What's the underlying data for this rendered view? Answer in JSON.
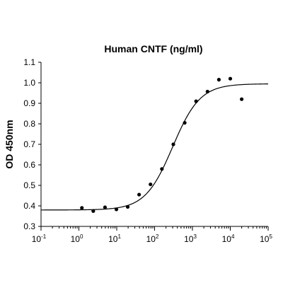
{
  "chart_data": {
    "type": "scatter",
    "title": "Human CNTF (ng/ml)",
    "xlabel": "",
    "ylabel": "OD 450nm",
    "x_scale": "log",
    "xlim": [
      0.1,
      100000
    ],
    "ylim": [
      0.3,
      1.1
    ],
    "y_ticks": [
      "0.3",
      "0.4",
      "0.5",
      "0.6",
      "0.7",
      "0.8",
      "0.9",
      "1.0",
      "1.1"
    ],
    "x_ticks": [
      {
        "base": "10",
        "exp": "-1",
        "value": 0.1
      },
      {
        "base": "10",
        "exp": "0",
        "value": 1
      },
      {
        "base": "10",
        "exp": "1",
        "value": 10
      },
      {
        "base": "10",
        "exp": "2",
        "value": 100
      },
      {
        "base": "10",
        "exp": "3",
        "value": 1000
      },
      {
        "base": "10",
        "exp": "4",
        "value": 10000
      },
      {
        "base": "10",
        "exp": "5",
        "value": 100000
      }
    ],
    "grid": false,
    "series": [
      {
        "points": [
          {
            "x": 1.2,
            "y": 0.39
          },
          {
            "x": 2.4,
            "y": 0.375
          },
          {
            "x": 4.9,
            "y": 0.393
          },
          {
            "x": 9.8,
            "y": 0.383
          },
          {
            "x": 19.5,
            "y": 0.395
          },
          {
            "x": 39,
            "y": 0.455
          },
          {
            "x": 78,
            "y": 0.505
          },
          {
            "x": 156,
            "y": 0.58
          },
          {
            "x": 313,
            "y": 0.7
          },
          {
            "x": 625,
            "y": 0.805
          },
          {
            "x": 1250,
            "y": 0.91
          },
          {
            "x": 2500,
            "y": 0.957
          },
          {
            "x": 5000,
            "y": 1.015
          },
          {
            "x": 10000,
            "y": 1.02
          },
          {
            "x": 20000,
            "y": 0.92
          }
        ]
      }
    ],
    "fit_curve": {
      "model": "4PL",
      "bottom": 0.38,
      "top": 0.995,
      "ec50": 300,
      "hill": 1.2
    }
  }
}
